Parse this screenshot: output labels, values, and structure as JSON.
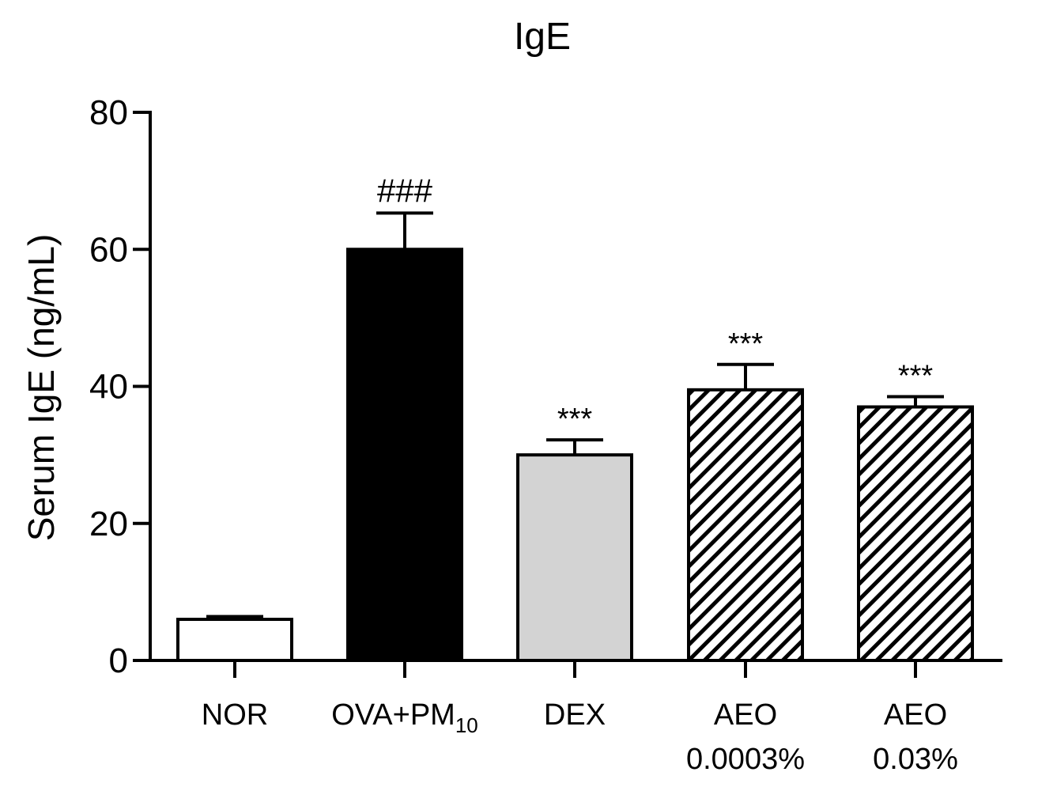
{
  "chart_data": {
    "type": "bar",
    "title": "IgE",
    "ylabel": "Serum IgE (ng/mL)",
    "xlabel": "",
    "ylim": [
      0,
      80
    ],
    "yticks": [
      0,
      20,
      40,
      60,
      80
    ],
    "categories": [
      {
        "lines": [
          "NOR"
        ]
      },
      {
        "lines": [
          "OVA+PM"
        ],
        "subscript": "10"
      },
      {
        "lines": [
          "DEX"
        ]
      },
      {
        "lines": [
          "AEO",
          "0.0003%"
        ]
      },
      {
        "lines": [
          "AEO",
          "0.03%"
        ]
      }
    ],
    "values": [
      6.0,
      60.0,
      30.0,
      39.5,
      37.0
    ],
    "errors": [
      0.4,
      5.3,
      2.2,
      3.7,
      1.5
    ],
    "annotations": [
      "",
      "###",
      "***",
      "***",
      "***"
    ],
    "fills": [
      "white",
      "black",
      "lightgray",
      "hatch",
      "hatch"
    ],
    "colors": {
      "black": "#000000",
      "white": "#ffffff",
      "lightgray": "#d3d3d3"
    }
  }
}
